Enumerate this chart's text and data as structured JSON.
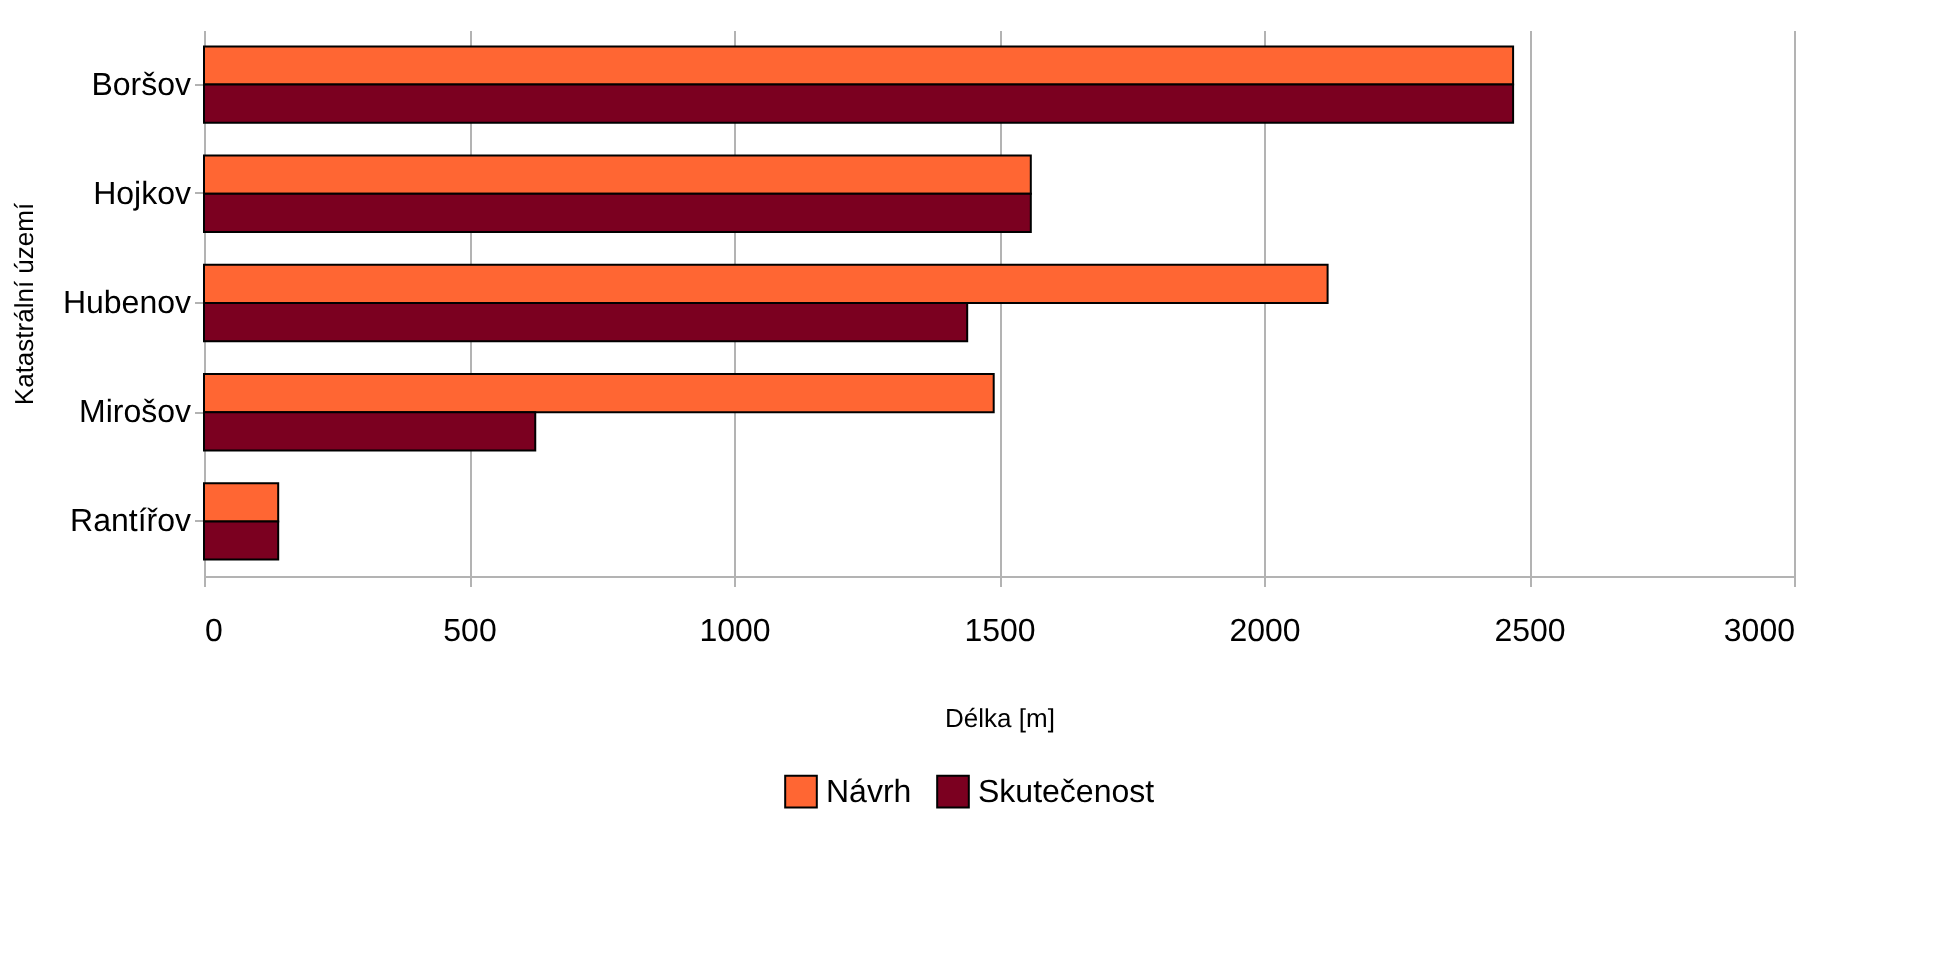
{
  "chart_data": {
    "type": "bar",
    "orientation": "horizontal",
    "xlabel": "Délka [m]",
    "ylabel": "Katastrální území",
    "categories": [
      "Boršov",
      "Hojkov",
      "Hubenov",
      "Mirošov",
      "Rantířov"
    ],
    "series": [
      {
        "name": "Návrh",
        "color": "#ff6633",
        "values": [
          2470,
          1560,
          2120,
          1490,
          140
        ]
      },
      {
        "name": "Skutečenost",
        "color": "#7b0020",
        "values": [
          2470,
          1560,
          1440,
          625,
          140
        ]
      }
    ],
    "xlim": [
      0,
      3000
    ],
    "xticks": [
      0,
      500,
      1000,
      1500,
      2000,
      2500,
      3000
    ],
    "grid": "x",
    "legend": "bottom"
  }
}
